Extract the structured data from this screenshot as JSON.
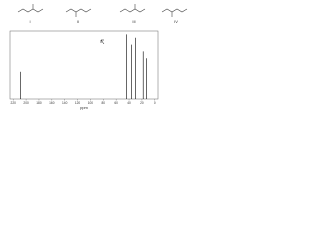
{
  "structures": {
    "labels": [
      "I",
      "II",
      "III",
      "IV"
    ]
  },
  "chart_data": {
    "type": "stem",
    "xlabel": "ppm",
    "x": [
      209,
      44,
      36,
      30,
      18,
      13
    ],
    "values": [
      0.4,
      0.95,
      0.8,
      0.9,
      0.7,
      0.6
    ],
    "color": "#000000",
    "xlim": [
      225,
      -5
    ],
    "ylim": [
      0,
      1
    ],
    "xticks": [
      220,
      200,
      180,
      160,
      140,
      120,
      100,
      80,
      60,
      40,
      20,
      0
    ]
  }
}
